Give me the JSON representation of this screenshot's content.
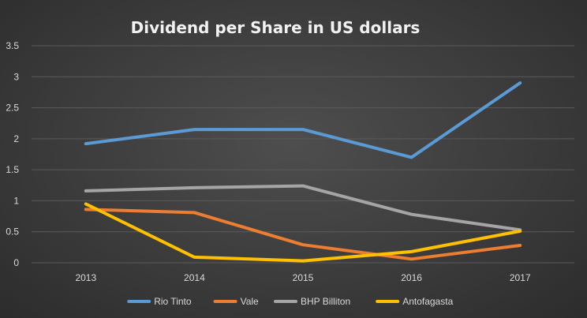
{
  "chart_data": {
    "type": "line",
    "title": "Dividend per Share in US dollars",
    "categories": [
      "2013",
      "2014",
      "2015",
      "2016",
      "2017"
    ],
    "ylim": [
      0,
      3.5
    ],
    "yticks": [
      "0",
      "0.5",
      "1",
      "1.5",
      "2",
      "2.5",
      "3",
      "3.5"
    ],
    "grid": true,
    "legend_position": "bottom",
    "series": [
      {
        "name": "Rio Tinto",
        "color": "#5b9bd5",
        "values": [
          1.92,
          2.15,
          2.15,
          1.7,
          2.9
        ]
      },
      {
        "name": "Vale",
        "color": "#ed7d31",
        "values": [
          0.86,
          0.81,
          0.29,
          0.06,
          0.28
        ]
      },
      {
        "name": "BHP Billiton",
        "color": "#a5a5a5",
        "values": [
          1.16,
          1.21,
          1.24,
          0.78,
          0.53
        ]
      },
      {
        "name": "Antofagasta",
        "color": "#ffc000",
        "values": [
          0.95,
          0.09,
          0.03,
          0.18,
          0.51
        ]
      }
    ]
  }
}
